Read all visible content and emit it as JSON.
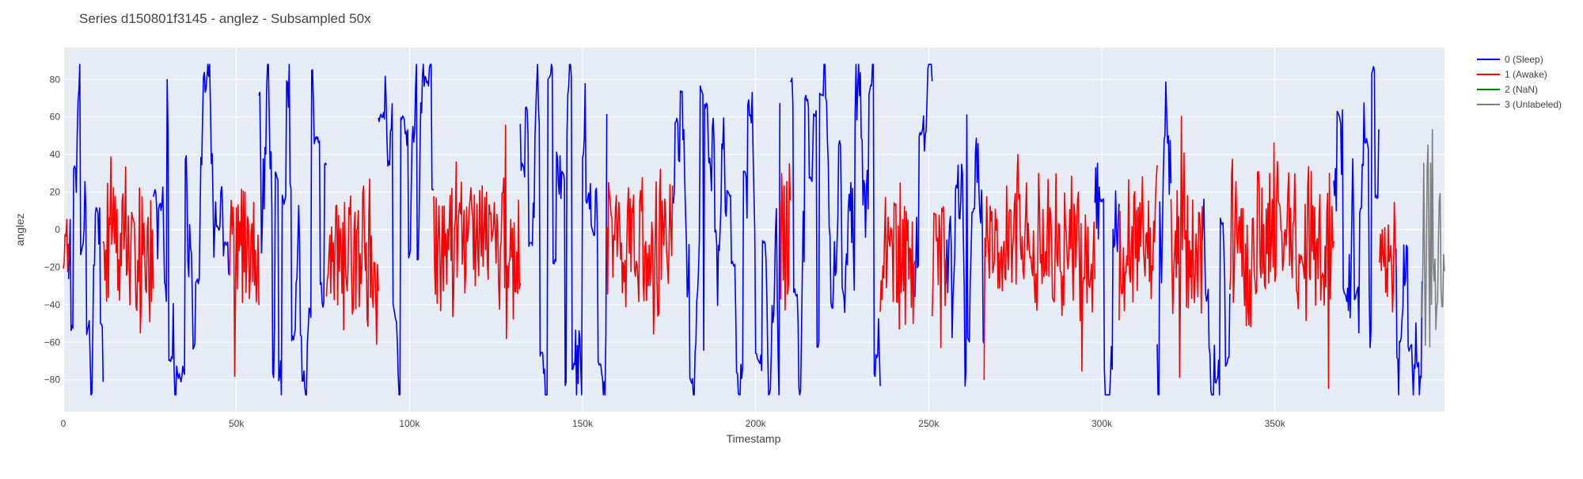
{
  "chart_data": {
    "type": "line",
    "title": "Series d150801f3145 - anglez - Subsampled 50x",
    "xlabel": "Timestamp",
    "ylabel": "anglez",
    "xlim": [
      0,
      399000
    ],
    "ylim": [
      -97,
      97
    ],
    "grid": true,
    "legend_position": "top-right",
    "x_ticks": [
      {
        "value": 0,
        "label": "0"
      },
      {
        "value": 50000,
        "label": "50k"
      },
      {
        "value": 100000,
        "label": "100k"
      },
      {
        "value": 150000,
        "label": "150k"
      },
      {
        "value": 200000,
        "label": "200k"
      },
      {
        "value": 250000,
        "label": "250k"
      },
      {
        "value": 300000,
        "label": "300k"
      },
      {
        "value": 350000,
        "label": "350k"
      }
    ],
    "y_ticks": [
      {
        "value": -80,
        "label": "−80"
      },
      {
        "value": -60,
        "label": "−60"
      },
      {
        "value": -40,
        "label": "−40"
      },
      {
        "value": -20,
        "label": "−20"
      },
      {
        "value": 0,
        "label": "0"
      },
      {
        "value": 20,
        "label": "20"
      },
      {
        "value": 40,
        "label": "40"
      },
      {
        "value": 60,
        "label": "60"
      },
      {
        "value": 80,
        "label": "80"
      }
    ],
    "series": [
      {
        "name": "0 (Sleep)",
        "color": "#0000ff",
        "segments": [
          [
            1500,
            11500
          ],
          [
            26000,
            48000
          ],
          [
            56500,
            76000
          ],
          [
            91000,
            107000
          ],
          [
            132000,
            157000
          ],
          [
            176000,
            207000
          ],
          [
            210000,
            236000
          ],
          [
            246000,
            251000
          ],
          [
            255000,
            266000
          ],
          [
            298000,
            305000
          ],
          [
            316000,
            320000
          ],
          [
            329000,
            337000
          ],
          [
            367000,
            380000
          ],
          [
            385000,
            392500
          ]
        ]
      },
      {
        "name": "1 (Awake)",
        "color": "#ff0000",
        "segments": [
          [
            0,
            1500
          ],
          [
            11500,
            26000
          ],
          [
            48000,
            56500
          ],
          [
            76000,
            91000
          ],
          [
            107000,
            132000
          ],
          [
            157000,
            176000
          ],
          [
            207000,
            210000
          ],
          [
            236000,
            246000
          ],
          [
            251000,
            255000
          ],
          [
            266000,
            298000
          ],
          [
            305000,
            316000
          ],
          [
            320000,
            329000
          ],
          [
            337000,
            367000
          ],
          [
            380000,
            385000
          ]
        ]
      },
      {
        "name": "2 (NaN)",
        "color": "#008000",
        "segments": []
      },
      {
        "name": "3 (Unlabeled)",
        "color": "#808080",
        "segments": [
          [
            392500,
            399000
          ]
        ]
      }
    ]
  }
}
